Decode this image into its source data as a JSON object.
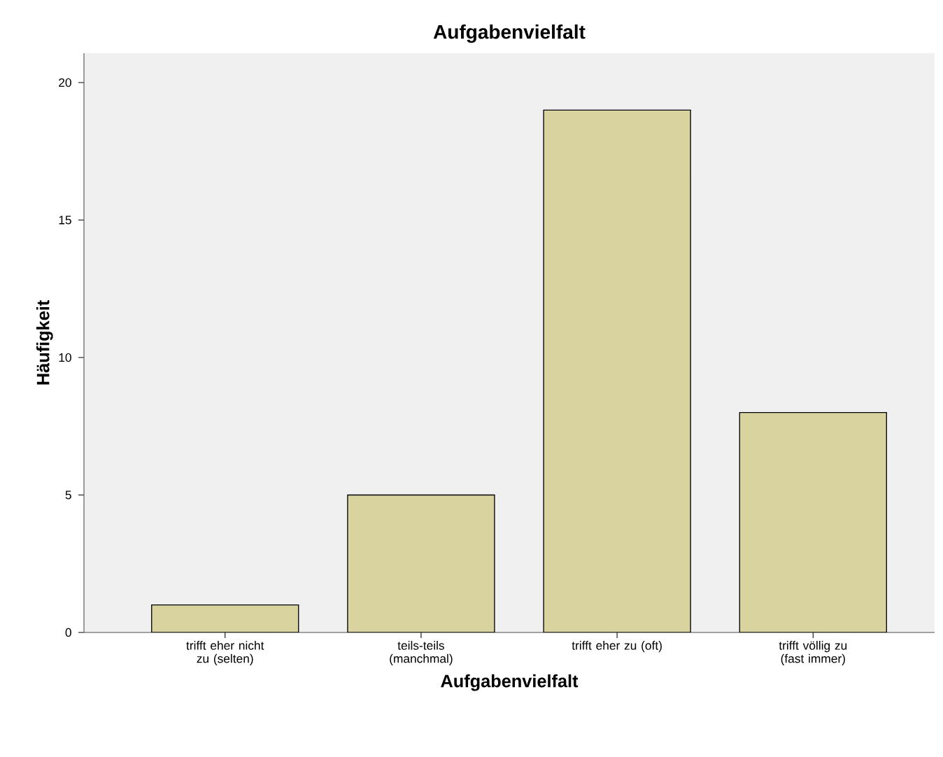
{
  "chart_data": {
    "type": "bar",
    "title": "Aufgabenvielfalt",
    "xlabel": "Aufgabenvielfalt",
    "ylabel": "Häufigkeit",
    "categories": [
      "trifft eher nicht zu (selten)",
      "teils-teils (manchmal)",
      "trifft eher zu (oft)",
      "trifft völlig zu (fast immer)"
    ],
    "values": [
      1,
      5,
      19,
      8
    ],
    "color": "#d9d3a0",
    "ylim": [
      0,
      21.07
    ],
    "yticks": [
      0,
      5,
      10,
      15,
      20
    ]
  }
}
